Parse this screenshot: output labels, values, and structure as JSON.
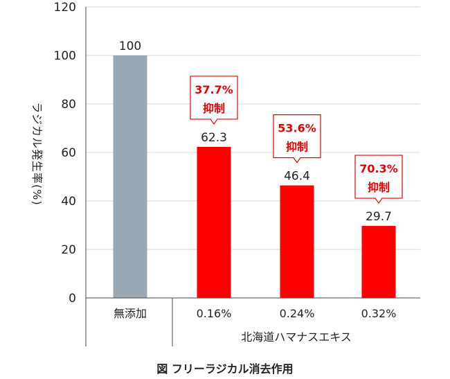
{
  "chart_data": {
    "type": "bar",
    "title": "図 フリーラジカル消去作用",
    "ylabel": "ラジカル発生率(%)",
    "ylim": [
      0,
      120
    ],
    "yticks": [
      0,
      20,
      40,
      60,
      80,
      100,
      120
    ],
    "grid": true,
    "categories": [
      "無添加",
      "0.16%",
      "0.24%",
      "0.32%"
    ],
    "values": [
      100,
      62.3,
      46.4,
      29.7
    ],
    "value_labels": [
      "100",
      "62.3",
      "46.4",
      "29.7"
    ],
    "group_label": "北海道ハマナスエキス",
    "callouts": [
      null,
      {
        "line1": "37.7%",
        "line2": "抑制"
      },
      {
        "line1": "53.6%",
        "line2": "抑制"
      },
      {
        "line1": "70.3%",
        "line2": "抑制"
      }
    ],
    "colors": {
      "control": "#9aa8b4",
      "treatment": "#ff0000",
      "callout": "#e60000",
      "grid": "#d9d9d9"
    }
  }
}
